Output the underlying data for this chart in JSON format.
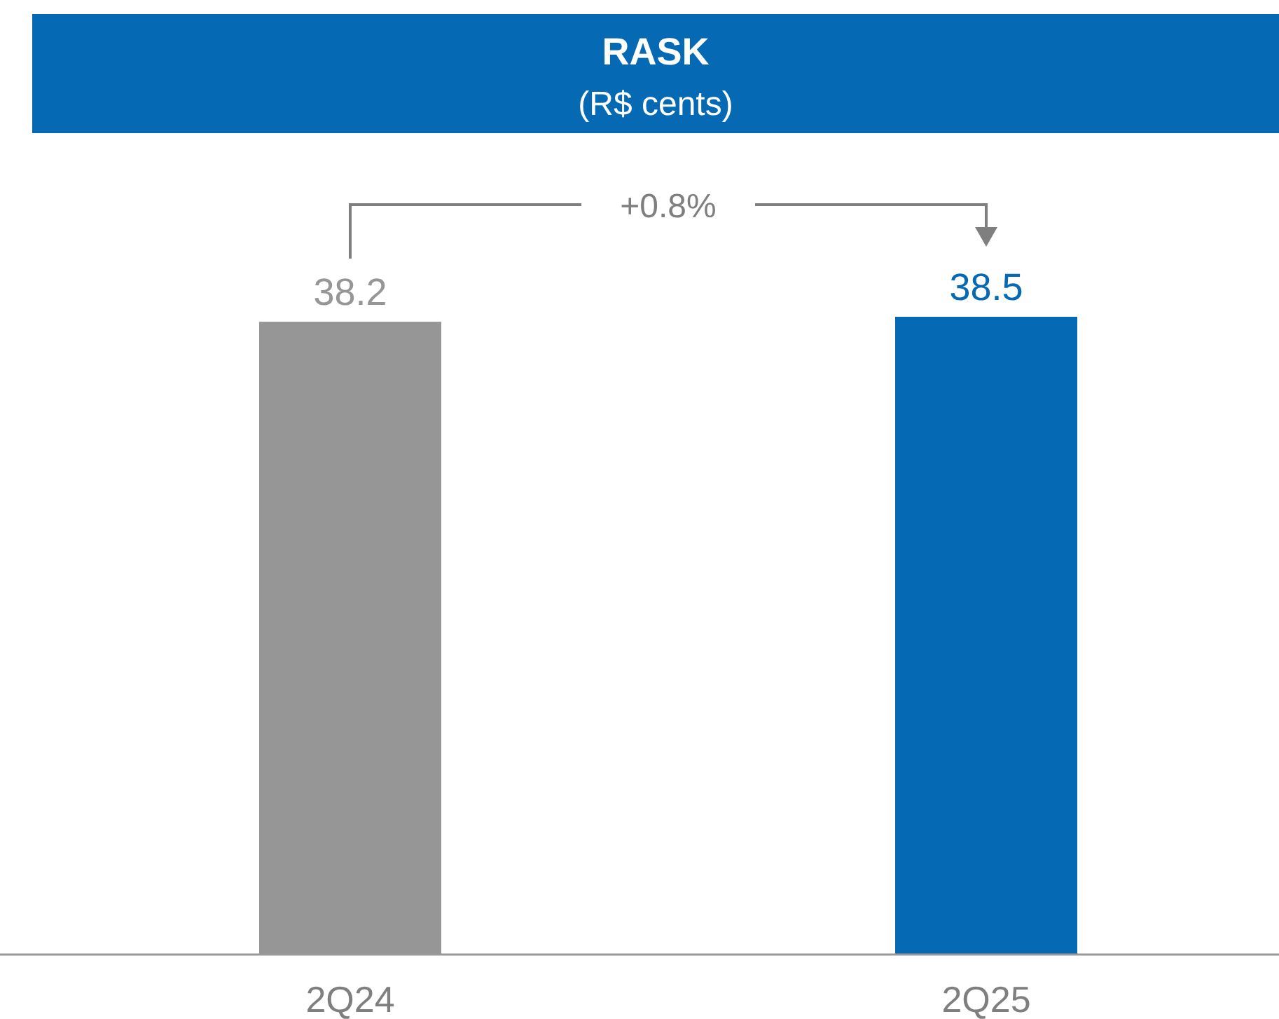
{
  "chart_data": {
    "type": "bar",
    "title": "RASK",
    "subtitle": "(R$ cents)",
    "categories": [
      "2Q24",
      "2Q25"
    ],
    "values": [
      38.2,
      38.5
    ],
    "colors": [
      "#969696",
      "#0569b3"
    ],
    "data_labels": true,
    "tick_labels": "x",
    "grid": false,
    "annotations": [
      "+0.8%"
    ]
  }
}
